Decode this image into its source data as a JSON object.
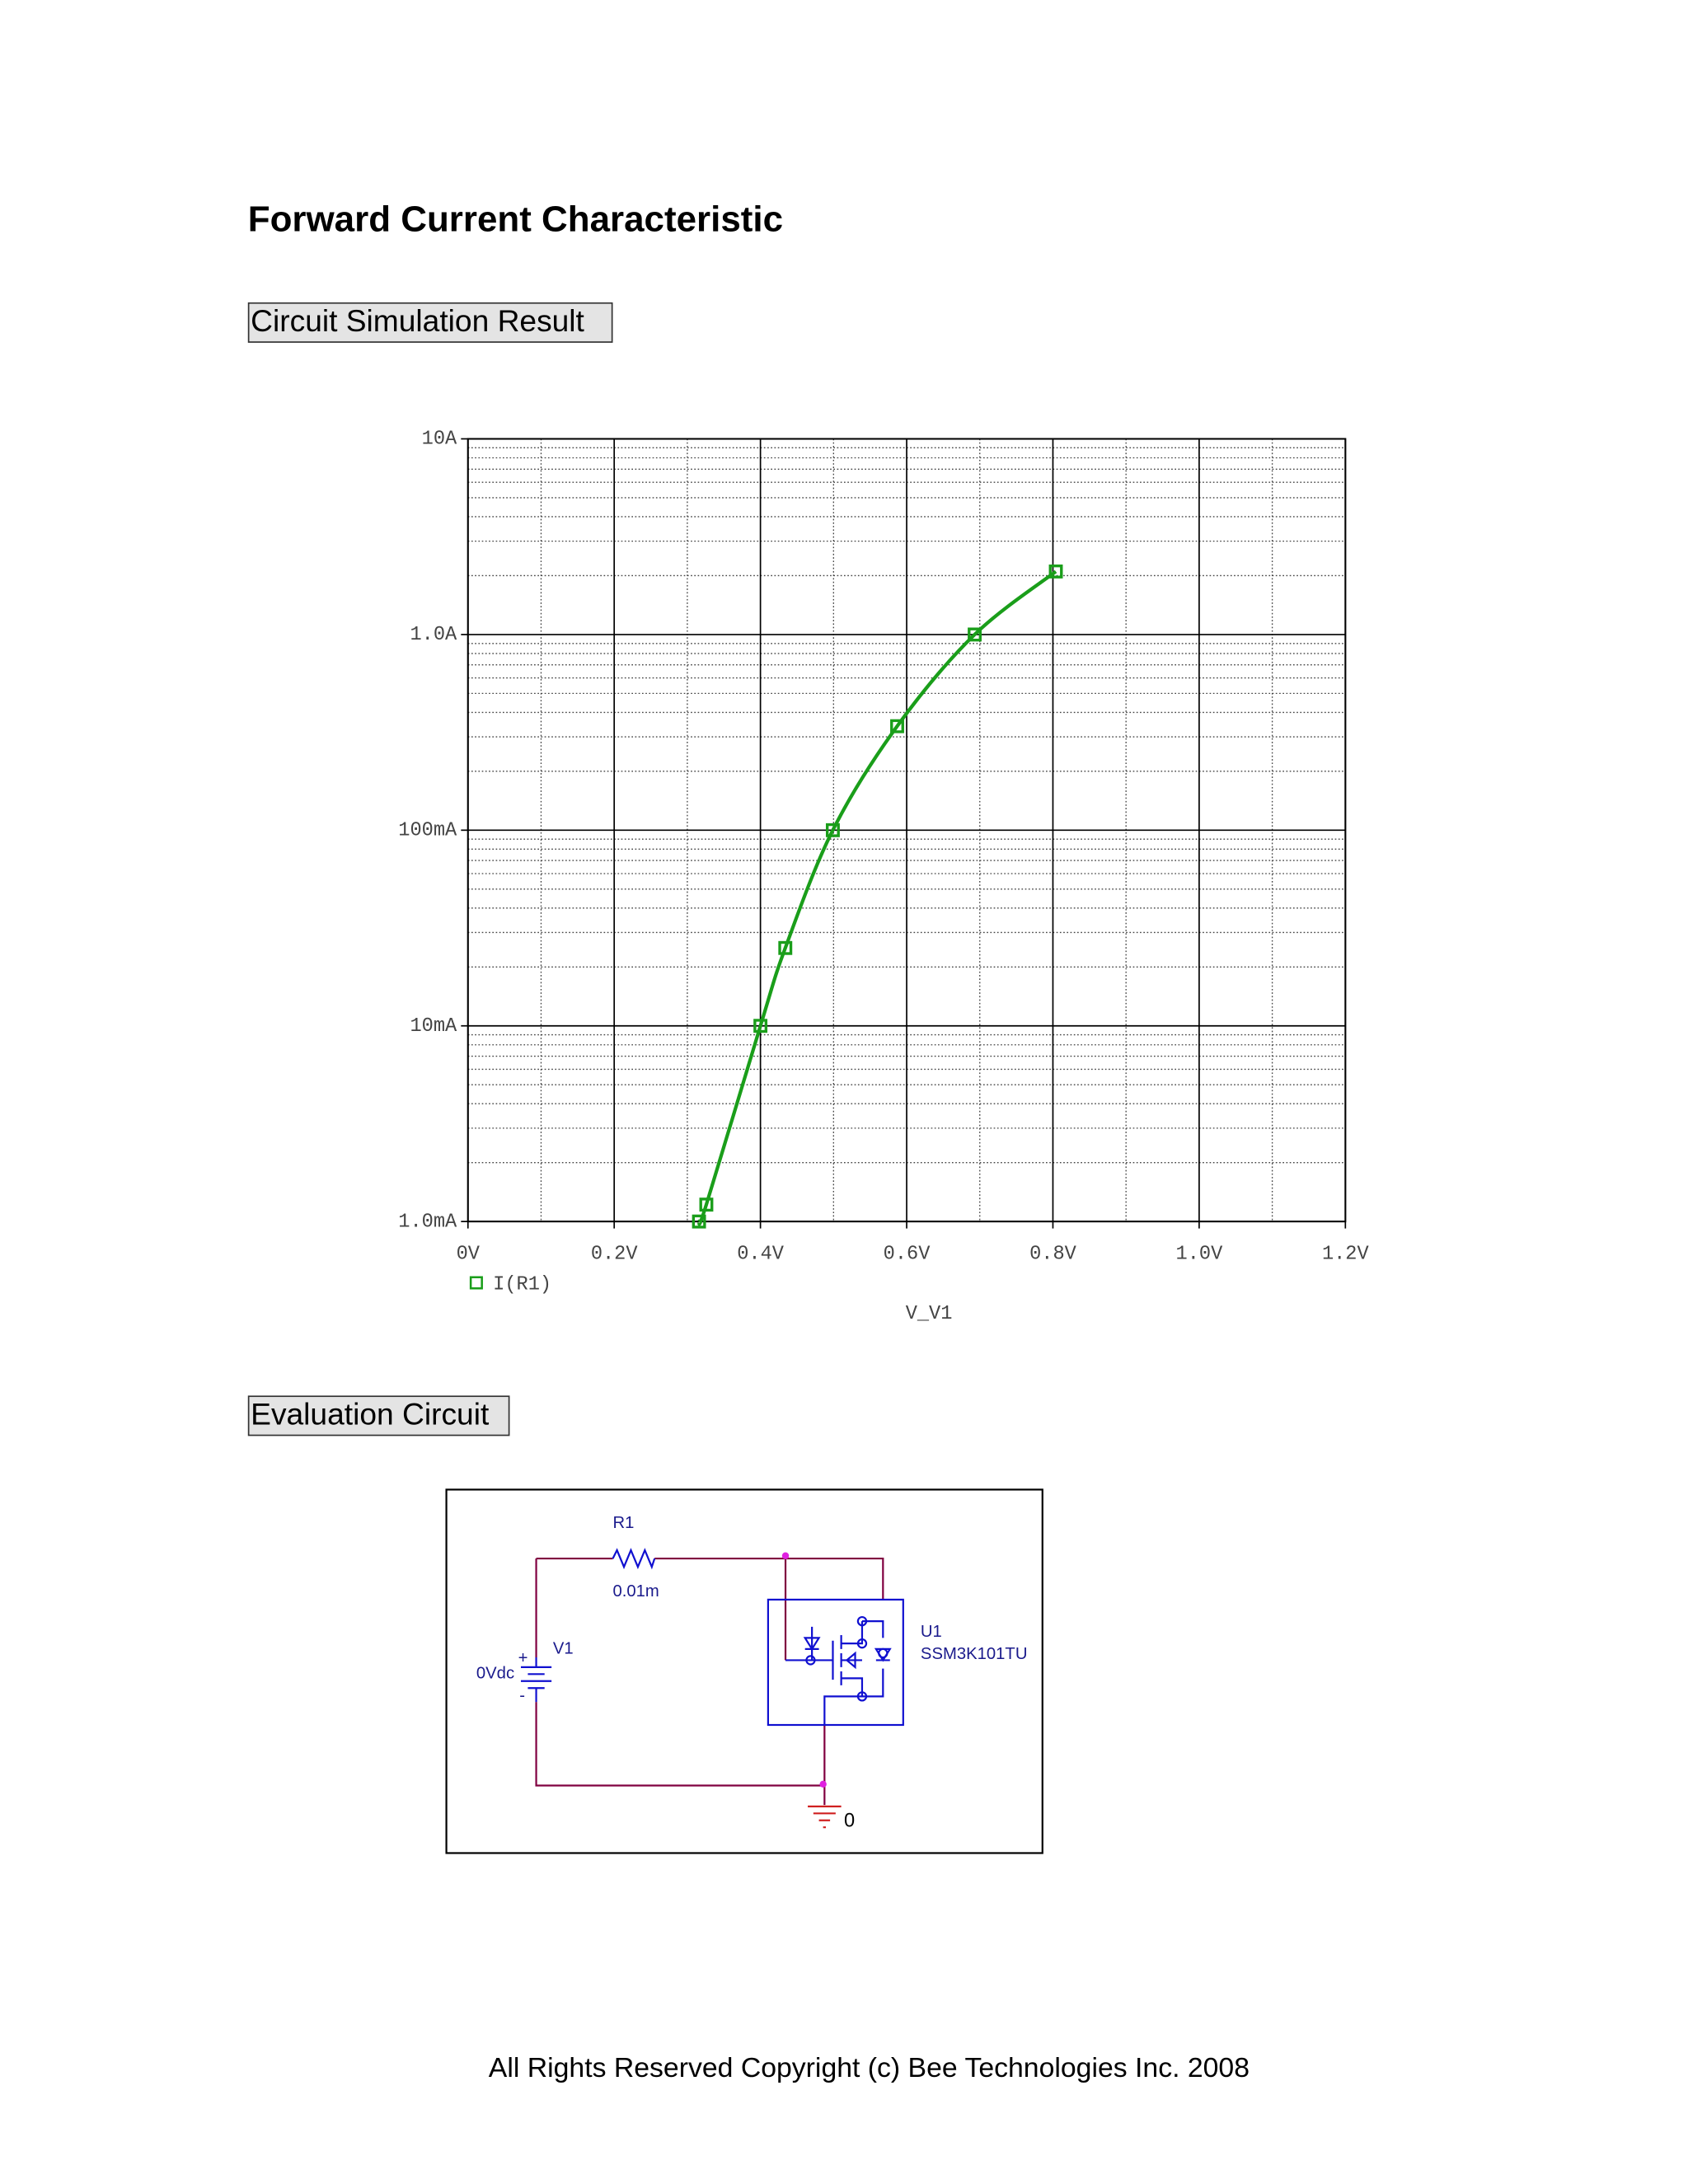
{
  "header": {
    "title": "Forward Current Characteristic"
  },
  "sections": [
    {
      "label": "Circuit Simulation Result"
    },
    {
      "label": "Evaluation Circuit"
    }
  ],
  "chart_data": {
    "type": "line",
    "log_y": true,
    "grid": true,
    "x": [
      0.316,
      0.326,
      0.4,
      0.434,
      0.499,
      0.587,
      0.693,
      0.804
    ],
    "series": [
      {
        "name": "I(R1)",
        "color": "#1a9e1a",
        "values": [
          0.001,
          0.00122,
          0.01,
          0.025,
          0.1,
          0.34,
          1.0,
          2.1
        ]
      }
    ],
    "xlabel": "V_V1",
    "xlim": [
      0,
      1.2
    ],
    "xticks": [
      {
        "value": 0,
        "label": "0V"
      },
      {
        "value": 0.2,
        "label": "0.2V"
      },
      {
        "value": 0.4,
        "label": "0.4V"
      },
      {
        "value": 0.6,
        "label": "0.6V"
      },
      {
        "value": 0.8,
        "label": "0.8V"
      },
      {
        "value": 1.0,
        "label": "1.0V"
      },
      {
        "value": 1.2,
        "label": "1.2V"
      }
    ],
    "xticks_minor": [
      0.1,
      0.3,
      0.5,
      0.7,
      0.9,
      1.1
    ],
    "ylim": [
      0.001,
      10
    ],
    "yticks": [
      {
        "value": 0.001,
        "label": "1.0mA"
      },
      {
        "value": 0.01,
        "label": "10mA"
      },
      {
        "value": 0.1,
        "label": "100mA"
      },
      {
        "value": 1,
        "label": "1.0A"
      },
      {
        "value": 10,
        "label": "10A"
      }
    ],
    "yticks_minor": [
      0.002,
      0.003,
      0.004,
      0.005,
      0.006,
      0.007,
      0.008,
      0.009,
      0.02,
      0.03,
      0.04,
      0.05,
      0.06,
      0.07,
      0.08,
      0.09,
      0.2,
      0.3,
      0.4,
      0.5,
      0.6,
      0.7,
      0.8,
      0.9,
      2,
      3,
      4,
      5,
      6,
      7,
      8,
      9
    ]
  },
  "circuit": {
    "r1": "R1",
    "r1_value": "0.01m",
    "v1": "V1",
    "v1_value": "0Vdc",
    "plus": "+",
    "minus": "-",
    "u1": "U1",
    "u1_part": "SSM3K101TU",
    "ground": "0"
  },
  "footer": "All Rights Reserved Copyright (c) Bee Technologies Inc. 2008"
}
